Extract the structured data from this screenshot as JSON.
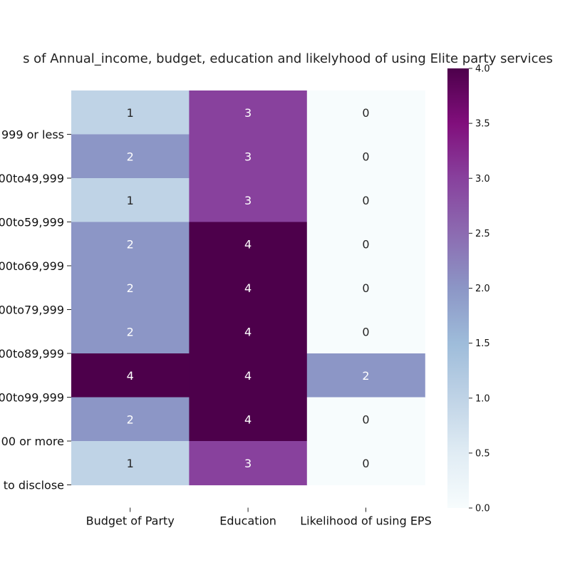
{
  "chart_data": {
    "type": "heatmap",
    "title": "s of Annual_income, budget, education and likelyhood of using Elite party services",
    "columns": [
      "Budget of Party",
      "Education",
      "Likelihood of using EPS"
    ],
    "row_tick_labels": [
      "999 or less",
      "00to49,999",
      "00to59,999",
      "00to69,999",
      "00to79,999",
      "00to89,999",
      "00to99,999",
      "00 or more",
      "to disclose"
    ],
    "values": [
      [
        1,
        3,
        0
      ],
      [
        2,
        3,
        0
      ],
      [
        1,
        3,
        0
      ],
      [
        2,
        4,
        0
      ],
      [
        2,
        4,
        0
      ],
      [
        2,
        4,
        0
      ],
      [
        4,
        4,
        2
      ],
      [
        2,
        4,
        0
      ],
      [
        1,
        3,
        0
      ]
    ],
    "colorbar": {
      "vmin": 0,
      "vmax": 4,
      "ticks": [
        "0.0",
        "0.5",
        "1.0",
        "1.5",
        "2.0",
        "2.5",
        "3.0",
        "3.5",
        "4.0"
      ],
      "colormap": "BuPu"
    },
    "colors": {
      "0": "#f7fcfd",
      "1": "#bfd3e6",
      "2": "#8c96c6",
      "3": "#88419d",
      "4": "#4d004b"
    },
    "annotations": true,
    "grid": false
  }
}
